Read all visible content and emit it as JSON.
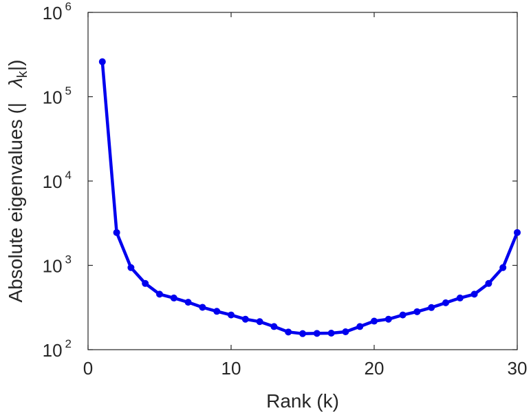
{
  "chart_data": {
    "type": "line",
    "title": "",
    "xlabel": "Rank (k)",
    "ylabel": {
      "text": "Absolute eigenvalues (|",
      "lambda": "λ",
      "subscript": "k",
      "close": "|)"
    },
    "xlim": [
      0,
      30
    ],
    "ylim": [
      100,
      1000000
    ],
    "yscale": "log",
    "grid": false,
    "x_ticks": [
      "0",
      "10",
      "20",
      "30"
    ],
    "y_ticks": [
      {
        "base": "10",
        "exp": "2"
      },
      {
        "base": "10",
        "exp": "3"
      },
      {
        "base": "10",
        "exp": "4"
      },
      {
        "base": "10",
        "exp": "5"
      },
      {
        "base": "10",
        "exp": "6"
      }
    ],
    "series": [
      {
        "color": "#0000ee",
        "marker": "circle",
        "x": [
          1,
          2,
          3,
          4,
          5,
          6,
          7,
          8,
          9,
          10,
          11,
          12,
          13,
          14,
          15,
          16,
          17,
          18,
          19,
          20,
          21,
          22,
          23,
          24,
          25,
          26,
          27,
          28,
          29,
          30
        ],
        "y": [
          260000,
          2450,
          940,
          610,
          455,
          410,
          365,
          318,
          285,
          258,
          230,
          215,
          188,
          162,
          155,
          156,
          157,
          163,
          188,
          218,
          230,
          258,
          282,
          316,
          360,
          410,
          455,
          610,
          940,
          2450
        ]
      }
    ]
  }
}
